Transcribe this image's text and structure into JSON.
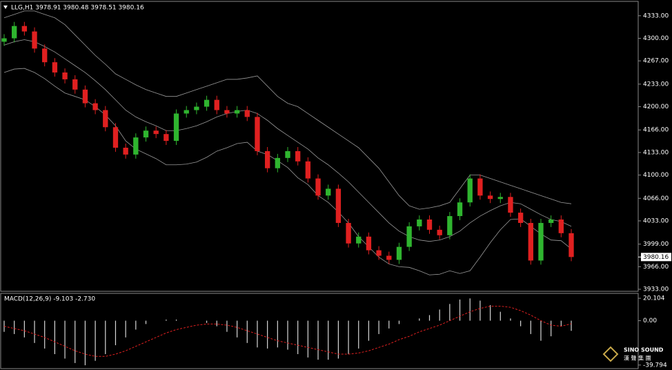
{
  "chart_data": [
    {
      "type": "candlestick",
      "title": "LLG,H1  3978.91 3980.48 3978.51 3980.16",
      "last_price": 3980.16,
      "ylim": [
        3930,
        4354
      ],
      "yticks": [
        {
          "value": 4333,
          "label": "4333.00"
        },
        {
          "value": 4300,
          "label": "4300.00"
        },
        {
          "value": 4267,
          "label": "4267.00"
        },
        {
          "value": 4233,
          "label": "4233.00"
        },
        {
          "value": 4200,
          "label": "4200.00"
        },
        {
          "value": 4166,
          "label": "4166.00"
        },
        {
          "value": 4133,
          "label": "4133.00"
        },
        {
          "value": 4100,
          "label": "4100.00"
        },
        {
          "value": 4066,
          "label": "4066.00"
        },
        {
          "value": 4033,
          "label": "4033.00"
        },
        {
          "value": 3999,
          "label": "3999.00"
        },
        {
          "value": 3966,
          "label": "3966.00"
        },
        {
          "value": 3933,
          "label": "3933.00"
        }
      ],
      "up_color": "#2fb52f",
      "down_color": "#e02020",
      "band_color": "#9a9a9a",
      "open": [
        4295,
        4300,
        4318,
        4310,
        4285,
        4265,
        4250,
        4240,
        4225,
        4205,
        4195,
        4170,
        4140,
        4130,
        4155,
        4165,
        4160,
        4150,
        4190,
        4195,
        4200,
        4210,
        4195,
        4190,
        4195,
        4185,
        4135,
        4110,
        4125,
        4135,
        4120,
        4095,
        4070,
        4080,
        4030,
        4000,
        4010,
        3990,
        3982,
        3976,
        3995,
        4025,
        4035,
        4020,
        4012,
        4040,
        4060,
        4095,
        4070,
        4065,
        4068,
        4045,
        4030,
        3975,
        4030,
        4035,
        4015
      ],
      "high": [
        4306,
        4324,
        4324,
        4316,
        4291,
        4271,
        4256,
        4246,
        4231,
        4211,
        4201,
        4176,
        4146,
        4161,
        4171,
        4171,
        4166,
        4196,
        4201,
        4206,
        4216,
        4216,
        4201,
        4201,
        4201,
        4191,
        4141,
        4131,
        4141,
        4141,
        4126,
        4101,
        4086,
        4086,
        4036,
        4016,
        4016,
        3996,
        3988,
        4001,
        4031,
        4041,
        4041,
        4026,
        4046,
        4066,
        4101,
        4101,
        4076,
        4074,
        4074,
        4051,
        4036,
        4036,
        4041,
        4041,
        4021
      ],
      "low": [
        4289,
        4294,
        4304,
        4279,
        4259,
        4244,
        4234,
        4219,
        4199,
        4189,
        4164,
        4134,
        4124,
        4124,
        4149,
        4154,
        4144,
        4144,
        4184,
        4189,
        4194,
        4189,
        4184,
        4184,
        4179,
        4129,
        4104,
        4104,
        4119,
        4114,
        4089,
        4064,
        4064,
        4024,
        3994,
        3994,
        3984,
        3976,
        3970,
        3970,
        3989,
        4019,
        4014,
        4006,
        4006,
        4034,
        4054,
        4064,
        4059,
        4059,
        4039,
        4024,
        3969,
        3969,
        4024,
        4009,
        3974
      ],
      "close": [
        4300,
        4318,
        4310,
        4285,
        4265,
        4250,
        4240,
        4225,
        4205,
        4195,
        4170,
        4140,
        4130,
        4155,
        4165,
        4160,
        4150,
        4190,
        4195,
        4200,
        4210,
        4195,
        4190,
        4195,
        4185,
        4135,
        4110,
        4125,
        4135,
        4120,
        4095,
        4070,
        4080,
        4030,
        4000,
        4010,
        3990,
        3982,
        3976,
        3995,
        4025,
        4035,
        4020,
        4012,
        4040,
        4060,
        4095,
        4070,
        4065,
        4068,
        4045,
        4030,
        3975,
        4030,
        4035,
        4015,
        3980.16
      ],
      "bands": [
        {
          "values": [
            4330,
            4335,
            4340,
            4340,
            4335,
            4330,
            4320,
            4305,
            4290,
            4275,
            4262,
            4248,
            4240,
            4232,
            4225,
            4220,
            4215,
            4215,
            4220,
            4225,
            4230,
            4235,
            4240,
            4240,
            4242,
            4245,
            4230,
            4215,
            4205,
            4200,
            4190,
            4180,
            4170,
            4160,
            4150,
            4140,
            4125,
            4110,
            4090,
            4070,
            4055,
            4050,
            4052,
            4055,
            4060,
            4080,
            4100,
            4100,
            4095,
            4090,
            4085,
            4080,
            4075,
            4070,
            4065,
            4060,
            4058
          ]
        },
        {
          "values": [
            4290,
            4295,
            4298,
            4295,
            4288,
            4280,
            4270,
            4260,
            4250,
            4238,
            4225,
            4210,
            4195,
            4185,
            4178,
            4172,
            4165,
            4165,
            4168,
            4172,
            4178,
            4185,
            4190,
            4193,
            4195,
            4190,
            4180,
            4168,
            4158,
            4148,
            4138,
            4125,
            4115,
            4103,
            4090,
            4075,
            4060,
            4045,
            4030,
            4018,
            4010,
            4005,
            4003,
            4005,
            4010,
            4018,
            4030,
            4040,
            4048,
            4055,
            4060,
            4058,
            4050,
            4042,
            4035,
            4032,
            4025
          ]
        },
        {
          "values": [
            4250,
            4255,
            4256,
            4250,
            4241,
            4230,
            4220,
            4215,
            4210,
            4200,
            4188,
            4172,
            4150,
            4138,
            4131,
            4124,
            4115,
            4115,
            4116,
            4119,
            4126,
            4135,
            4140,
            4146,
            4148,
            4135,
            4130,
            4121,
            4111,
            4096,
            4086,
            4070,
            4060,
            4046,
            4030,
            4010,
            3995,
            3980,
            3970,
            3966,
            3965,
            3960,
            3954,
            3955,
            3960,
            3956,
            3960,
            3980,
            4001,
            4020,
            4035,
            4036,
            4025,
            4014,
            4005,
            4004,
            3992
          ]
        }
      ]
    },
    {
      "type": "macd",
      "title": "MACD(12,26,9) -9.103 -2.730",
      "ylim": [
        -43,
        24.5
      ],
      "yticks": [
        20.104,
        {
          "value": 0,
          "label": "0.00"
        },
        -39.794
      ],
      "hist_color": "#d8d8d8",
      "signal_color": "#e02020",
      "histogram": [
        -10,
        -12,
        -15,
        -20,
        -25,
        -30,
        -34,
        -38,
        -40,
        -36,
        -30,
        -22,
        -15,
        -8,
        -3,
        0,
        1,
        1,
        0,
        0,
        -2,
        -5,
        -10,
        -15,
        -20,
        -24,
        -25,
        -24,
        -26,
        -30,
        -33,
        -35,
        -35,
        -34,
        -30,
        -25,
        -18,
        -12,
        -7,
        -3,
        0,
        2,
        5,
        10,
        15,
        19,
        20,
        18,
        14,
        8,
        2,
        -5,
        -12,
        -18,
        -14,
        -5,
        -9.103
      ],
      "signal": [
        -5,
        -7,
        -9,
        -12,
        -15,
        -19,
        -23,
        -27,
        -30,
        -32,
        -32,
        -30,
        -27,
        -23,
        -19,
        -15,
        -11,
        -8,
        -6,
        -4,
        -3,
        -3,
        -4,
        -6,
        -9,
        -12,
        -15,
        -18,
        -20,
        -22,
        -24,
        -26,
        -28,
        -30,
        -30,
        -29,
        -27,
        -24,
        -21,
        -17,
        -14,
        -10,
        -7,
        -4,
        0,
        4,
        8,
        11,
        13,
        13,
        12,
        9,
        5,
        0,
        -4,
        -5,
        -2.73
      ]
    }
  ],
  "watermark": {
    "name": "SINO SOUND",
    "subtitle": "漢 聲 集 團"
  }
}
